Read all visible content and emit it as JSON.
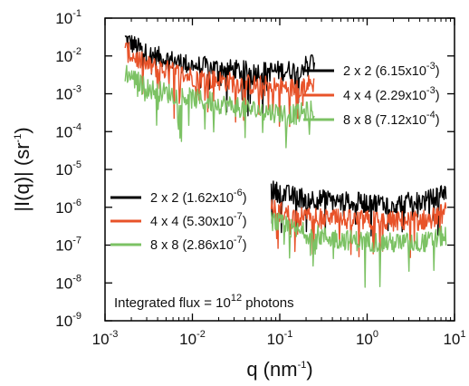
{
  "chart_data": {
    "type": "line",
    "xlabel_base": "q (nm",
    "xlabel_sup": "-1",
    "xlabel_end": ")",
    "ylabel_base": "|I(q)| (sr",
    "ylabel_sup": "-1",
    "ylabel_end": ")",
    "x_scale": "log",
    "y_scale": "log",
    "xlim": [
      0.001,
      10
    ],
    "ylim": [
      1e-09,
      0.1
    ],
    "x_ticks": [
      {
        "value": 0.001,
        "base": "10",
        "exp": "-3"
      },
      {
        "value": 0.01,
        "base": "10",
        "exp": "-2"
      },
      {
        "value": 0.1,
        "base": "10",
        "exp": "-1"
      },
      {
        "value": 1,
        "base": "10",
        "exp": "0"
      },
      {
        "value": 10,
        "base": "10",
        "exp": "1"
      }
    ],
    "y_ticks": [
      {
        "value": 0.1,
        "base": "10",
        "exp": "-1"
      },
      {
        "value": 0.01,
        "base": "10",
        "exp": "-2"
      },
      {
        "value": 0.001,
        "base": "10",
        "exp": "-3"
      },
      {
        "value": 0.0001,
        "base": "10",
        "exp": "-4"
      },
      {
        "value": 1e-05,
        "base": "10",
        "exp": "-5"
      },
      {
        "value": 1e-06,
        "base": "10",
        "exp": "-6"
      },
      {
        "value": 1e-07,
        "base": "10",
        "exp": "-7"
      },
      {
        "value": 1e-08,
        "base": "10",
        "exp": "-8"
      },
      {
        "value": 1e-09,
        "base": "10",
        "exp": "-9"
      }
    ],
    "grid": false,
    "annotation_base": "Integrated flux = 10",
    "annotation_sup": "12",
    "annotation_end": " photons",
    "legends": [
      {
        "placement": "right",
        "entries": [
          {
            "label": "2 x 2 (6.15x10",
            "sup": "-3",
            "end": ")",
            "color": "#000000"
          },
          {
            "label": "4 x 4 (2.29x10",
            "sup": "-3",
            "end": ")",
            "color": "#e8532a"
          },
          {
            "label": "8 x 8 (7.12x10",
            "sup": "-4",
            "end": ")",
            "color": "#7cc264"
          }
        ]
      },
      {
        "placement": "left-middle",
        "entries": [
          {
            "label": "2 x 2 (1.62x10",
            "sup": "-6",
            "end": ")",
            "color": "#000000"
          },
          {
            "label": "4 x 4 (5.30x10",
            "sup": "-7",
            "end": ")",
            "color": "#e8532a"
          },
          {
            "label": "8 x 8 (2.86x10",
            "sup": "-7",
            "end": ")",
            "color": "#7cc264"
          }
        ]
      }
    ],
    "series": [
      {
        "color": "#000000",
        "q_range": [
          0.0017,
          0.25
        ],
        "envelope": [
          [
            0.0017,
            0.03
          ],
          [
            0.003,
            0.012
          ],
          [
            0.01,
            0.006
          ],
          [
            0.05,
            0.004
          ],
          [
            0.15,
            0.0045
          ],
          [
            0.25,
            0.008
          ]
        ]
      },
      {
        "color": "#e8532a",
        "q_range": [
          0.0017,
          0.25
        ],
        "envelope": [
          [
            0.0017,
            0.015
          ],
          [
            0.003,
            0.006
          ],
          [
            0.01,
            0.003
          ],
          [
            0.05,
            0.0018
          ],
          [
            0.15,
            0.0015
          ],
          [
            0.25,
            0.002
          ]
        ]
      },
      {
        "color": "#7cc264",
        "q_range": [
          0.0017,
          0.25
        ],
        "envelope": [
          [
            0.0017,
            0.004
          ],
          [
            0.003,
            0.0015
          ],
          [
            0.01,
            0.0008
          ],
          [
            0.05,
            0.0004
          ],
          [
            0.15,
            0.0003
          ],
          [
            0.25,
            0.0004
          ]
        ]
      },
      {
        "color": "#000000",
        "q_range": [
          0.08,
          8
        ],
        "envelope": [
          [
            0.08,
            3e-06
          ],
          [
            0.15,
            2e-06
          ],
          [
            0.5,
            1.5e-06
          ],
          [
            2,
            1.3e-06
          ],
          [
            5,
            1.6e-06
          ],
          [
            8,
            3e-06
          ]
        ]
      },
      {
        "color": "#e8532a",
        "q_range": [
          0.08,
          8
        ],
        "envelope": [
          [
            0.08,
            1e-06
          ],
          [
            0.15,
            6e-07
          ],
          [
            0.5,
            5e-07
          ],
          [
            2,
            4.5e-07
          ],
          [
            5,
            5e-07
          ],
          [
            8,
            8e-07
          ]
        ]
      },
      {
        "color": "#7cc264",
        "q_range": [
          0.08,
          8
        ],
        "envelope": [
          [
            0.08,
            5e-07
          ],
          [
            0.15,
            2.5e-07
          ],
          [
            0.5,
            1.5e-07
          ],
          [
            2,
            1.2e-07
          ],
          [
            5,
            1.3e-07
          ],
          [
            8,
            2e-07
          ]
        ]
      }
    ]
  }
}
